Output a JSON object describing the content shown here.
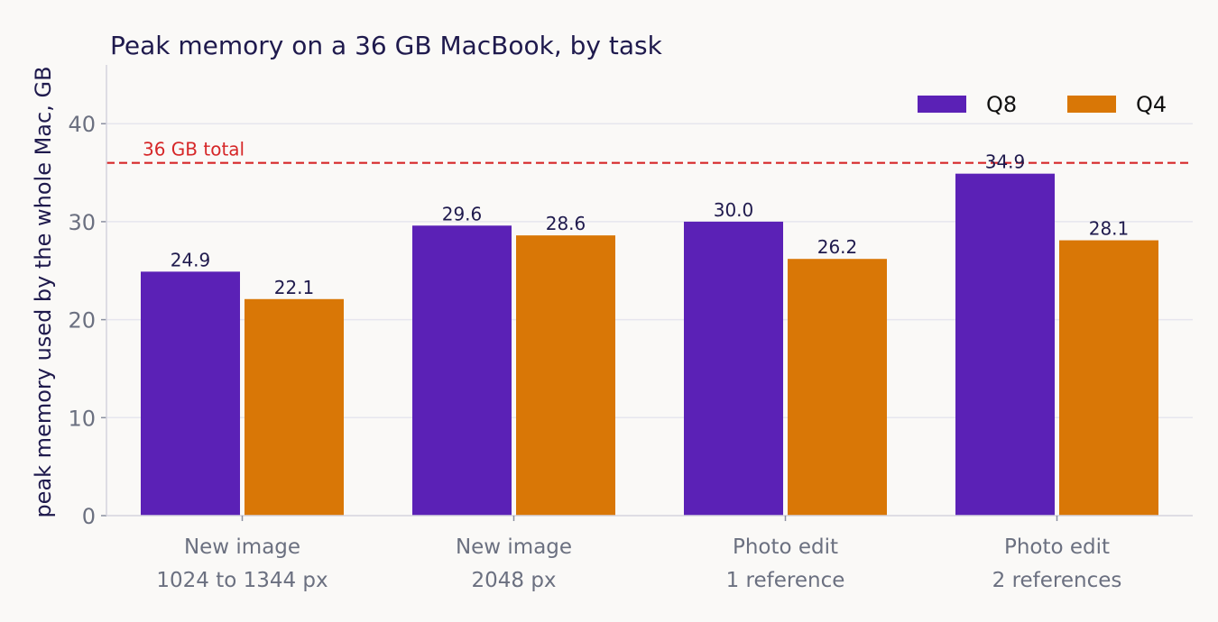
{
  "chart_data": {
    "type": "bar",
    "title": "Peak memory on a 36 GB MacBook, by task",
    "xlabel": "",
    "ylabel": "peak memory used by the whole Mac, GB",
    "categories": [
      [
        "New image",
        "1024 to 1344 px"
      ],
      [
        "New image",
        "2048 px"
      ],
      [
        "Photo edit",
        "1 reference"
      ],
      [
        "Photo edit",
        "2 references"
      ]
    ],
    "series": [
      {
        "name": "Q8",
        "color": "#5b21b6",
        "values": [
          24.9,
          29.6,
          30.0,
          34.9
        ],
        "labels": [
          "24.9",
          "29.6",
          "30.0",
          "34.9"
        ]
      },
      {
        "name": "Q4",
        "color": "#d97706",
        "values": [
          22.1,
          28.6,
          26.2,
          28.1
        ],
        "labels": [
          "22.1",
          "28.6",
          "26.2",
          "28.1"
        ]
      }
    ],
    "ylim": [
      0,
      46
    ],
    "yticks": [
      0,
      10,
      20,
      30,
      40
    ],
    "grid": true,
    "legend_position": "top-right",
    "reference_line": {
      "value": 36,
      "label": "36 GB total",
      "color": "#d62728",
      "style": "dashed"
    }
  }
}
